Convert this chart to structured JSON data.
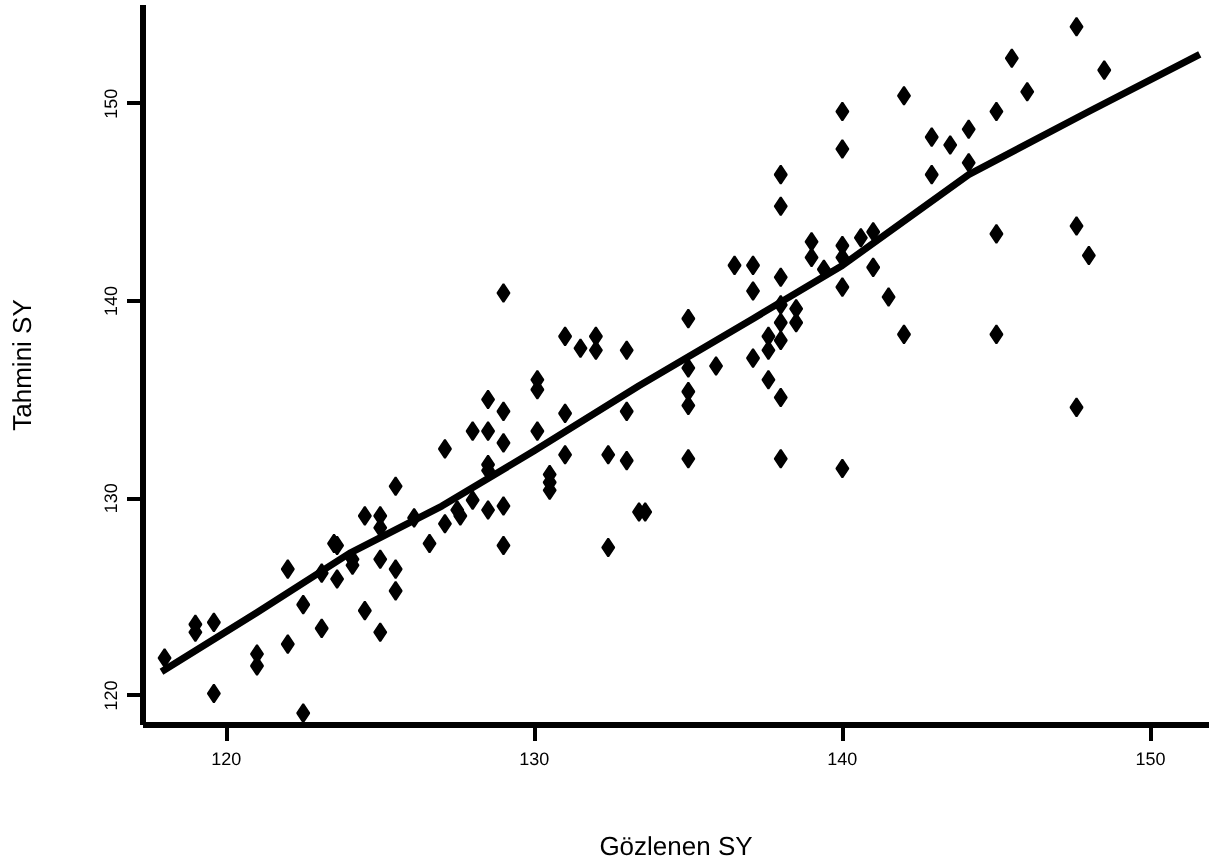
{
  "chart_data": {
    "type": "scatter",
    "xlabel": "Gözlenen SY",
    "ylabel": "Tahmini SY",
    "xlim": [
      117.3,
      151.9
    ],
    "ylim": [
      118.5,
      155
    ],
    "xticks": [
      120,
      130,
      140,
      150
    ],
    "yticks": [
      120,
      130,
      140,
      150
    ],
    "grid": false,
    "series": [
      {
        "marker": "diamond",
        "color": "#000000",
        "x": [
          118.0,
          119.0,
          119.0,
          119.6,
          119.6,
          121.0,
          121.0,
          122.0,
          122.0,
          122.5,
          122.5,
          123.1,
          123.5,
          123.1,
          123.6,
          124.1,
          124.1,
          124.5,
          124.5,
          125.0,
          125.0,
          125.0,
          125.0,
          125.5,
          125.5,
          126.6,
          127.6,
          126.1,
          127.1,
          123.6,
          125.5,
          128.0,
          127.5,
          128.5,
          129.0,
          129.0,
          132.4,
          133.4,
          127.1,
          128.5,
          128.5,
          130.5,
          130.5,
          130.5,
          128.0,
          128.5,
          130.1,
          129.0,
          131.0,
          132.4,
          133.0,
          128.5,
          129.0,
          131.0,
          133.0,
          130.1,
          130.1,
          131.0,
          132.0,
          131.5,
          132.0,
          133.0,
          129.0,
          135.0,
          135.0,
          135.0,
          135.0,
          135.9,
          136.5,
          137.1,
          137.1,
          137.1,
          137.6,
          137.6,
          137.6,
          138.0,
          138.0,
          138.0,
          138.0,
          138.0,
          138.0,
          138.0,
          138.5,
          138.5,
          139.0,
          139.0,
          139.4,
          140.0,
          140.0,
          140.0,
          140.0,
          140.0,
          140.6,
          141.0,
          141.0,
          141.5,
          142.0,
          142.0,
          142.9,
          142.9,
          143.5,
          144.1,
          144.1,
          145.0,
          145.0,
          145.0,
          145.5,
          146.0,
          147.6,
          147.6,
          148.0,
          147.6,
          148.5,
          135.0,
          138.0,
          140.0,
          133.6
        ],
        "values": [
          121.9,
          123.6,
          123.2,
          123.7,
          120.1,
          122.1,
          121.5,
          122.6,
          126.4,
          119.1,
          124.6,
          123.4,
          127.7,
          126.2,
          125.9,
          126.9,
          126.6,
          129.1,
          124.3,
          129.1,
          128.5,
          126.9,
          123.2,
          126.4,
          125.3,
          127.7,
          129.1,
          129.0,
          128.7,
          127.6,
          130.6,
          129.9,
          129.4,
          129.4,
          129.6,
          127.6,
          127.5,
          129.3,
          132.5,
          131.7,
          131.4,
          131.2,
          130.8,
          130.4,
          133.4,
          133.4,
          133.4,
          132.8,
          132.2,
          132.2,
          131.9,
          135.0,
          134.4,
          134.3,
          134.4,
          136.0,
          135.5,
          138.2,
          138.2,
          137.6,
          137.5,
          137.5,
          140.4,
          139.1,
          136.6,
          135.4,
          134.7,
          136.7,
          141.8,
          141.8,
          140.5,
          137.1,
          138.2,
          137.5,
          136.0,
          146.4,
          144.8,
          141.2,
          139.8,
          138.9,
          138.0,
          135.1,
          139.6,
          138.9,
          143.0,
          142.2,
          141.6,
          142.8,
          142.2,
          140.7,
          149.6,
          147.7,
          143.2,
          143.5,
          141.7,
          140.2,
          150.4,
          138.3,
          148.3,
          146.4,
          147.9,
          148.7,
          147.0,
          149.6,
          143.4,
          138.3,
          152.3,
          150.6,
          153.9,
          143.8,
          142.3,
          134.6,
          151.7,
          132.0,
          132.0,
          131.5,
          129.3
        ]
      },
      {
        "type": "line",
        "color": "#000000",
        "x": [
          117.9,
          121,
          124,
          127,
          130,
          133.4,
          137.1,
          140,
          144.1,
          148,
          151.6
        ],
        "values": [
          121.2,
          124.2,
          127.2,
          129.6,
          132.4,
          135.7,
          139.1,
          141.8,
          146.4,
          149.6,
          152.5
        ]
      }
    ]
  }
}
